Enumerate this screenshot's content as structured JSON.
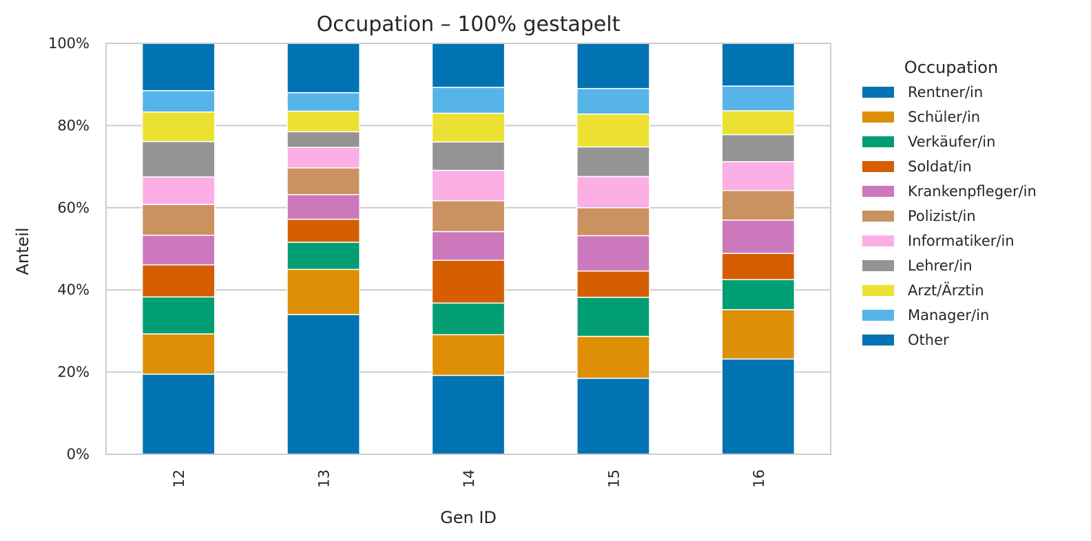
{
  "chart_data": {
    "type": "bar",
    "stacked": true,
    "normalized": true,
    "title": "Occupation – 100% gestapelt",
    "xlabel": "Gen ID",
    "ylabel": "Anteil",
    "ylim": [
      0,
      1
    ],
    "yticks": [
      "0%",
      "20%",
      "40%",
      "60%",
      "80%",
      "100%"
    ],
    "categories": [
      "12",
      "13",
      "14",
      "15",
      "16"
    ],
    "grid": true,
    "legend": {
      "title": "Occupation",
      "placement": "outside-right"
    },
    "series": [
      {
        "name": "Rentner/in",
        "color": "#0173b2",
        "values": [
          0.195,
          0.34,
          0.192,
          0.185,
          0.232
        ]
      },
      {
        "name": "Schüler/in",
        "color": "#de8f05",
        "values": [
          0.098,
          0.11,
          0.099,
          0.102,
          0.12
        ]
      },
      {
        "name": "Verkäufer/in",
        "color": "#029e73",
        "values": [
          0.09,
          0.066,
          0.077,
          0.095,
          0.073
        ]
      },
      {
        "name": "Soldat/in",
        "color": "#d55e00",
        "values": [
          0.078,
          0.056,
          0.104,
          0.064,
          0.064
        ]
      },
      {
        "name": "Krankenpfleger/in",
        "color": "#cc78bc",
        "values": [
          0.072,
          0.06,
          0.07,
          0.086,
          0.081
        ]
      },
      {
        "name": "Polizist/in",
        "color": "#ca9161",
        "values": [
          0.075,
          0.065,
          0.075,
          0.068,
          0.072
        ]
      },
      {
        "name": "Informatiker/in",
        "color": "#fbafe4",
        "values": [
          0.067,
          0.05,
          0.074,
          0.076,
          0.07
        ]
      },
      {
        "name": "Lehrer/in",
        "color": "#949494",
        "values": [
          0.086,
          0.038,
          0.069,
          0.072,
          0.066
        ]
      },
      {
        "name": "Arzt/Ärztin",
        "color": "#ece133",
        "values": [
          0.072,
          0.05,
          0.07,
          0.08,
          0.058
        ]
      },
      {
        "name": "Manager/in",
        "color": "#56b4e9",
        "values": [
          0.052,
          0.045,
          0.063,
          0.062,
          0.06
        ]
      },
      {
        "name": "Other",
        "color": "#0173b2",
        "values": [
          0.115,
          0.12,
          0.107,
          0.11,
          0.104
        ]
      }
    ]
  }
}
